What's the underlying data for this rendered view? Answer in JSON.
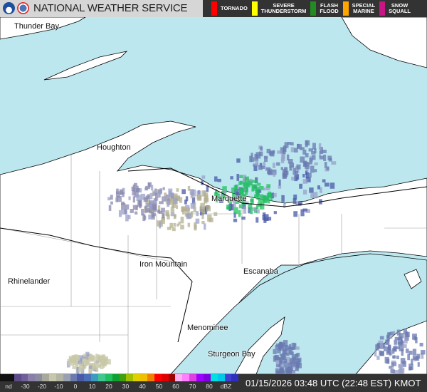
{
  "header": {
    "title": "NATIONAL WEATHER SERVICE",
    "logos": [
      "noaa-logo",
      "nws-logo"
    ]
  },
  "legend": [
    {
      "label": "TORNADO",
      "color": "#ff0000"
    },
    {
      "label": "SEVERE\nTHUNDERSTORM",
      "color": "#ffff00"
    },
    {
      "label": "FLASH\nFLOOD",
      "color": "#228b22"
    },
    {
      "label": "SPECIAL\nMARINE",
      "color": "#ffa500"
    },
    {
      "label": "SNOW\nSQUALL",
      "color": "#c71585"
    }
  ],
  "map": {
    "water_color": "#bde7ef",
    "land_color": "#ffffff",
    "cities": [
      "Thunder Bay",
      "Houghton",
      "Marquette",
      "Iron Mountain",
      "Escanaba",
      "Rhinelander",
      "Menominee",
      "Sturgeon Bay"
    ]
  },
  "scale": {
    "ticks": [
      "nd",
      "-30",
      "-20",
      "-10",
      "0",
      "10",
      "20",
      "30",
      "40",
      "50",
      "60",
      "70",
      "80",
      "dBZ"
    ]
  },
  "timestamp": "01/15/2026 03:48 UTC (22:48 EST) KMOT"
}
